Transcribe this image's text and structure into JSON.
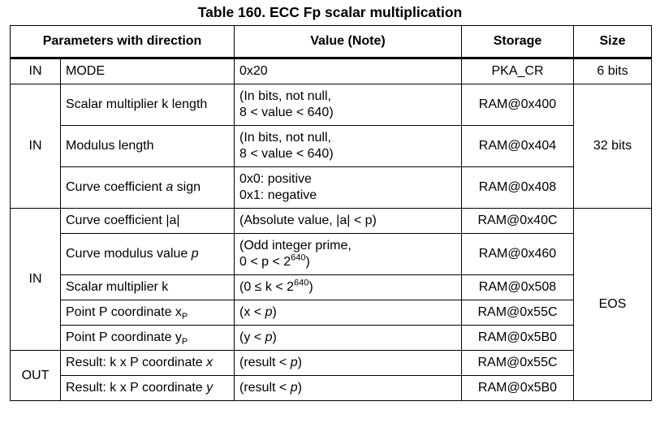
{
  "title": "Table 160. ECC Fp scalar multiplication",
  "headers": {
    "params": "Parameters with direction",
    "value": "Value (Note)",
    "storage": "Storage",
    "size": "Size"
  },
  "rows": [
    {
      "dir": "IN",
      "param": "MODE",
      "value": [
        "0x20"
      ],
      "storage": "PKA_CR",
      "size": "6 bits"
    },
    {
      "dir": "IN",
      "param": "Scalar multiplier k length",
      "value": [
        "(In bits, not null,",
        "8 < value < 640)"
      ],
      "storage": "RAM@0x400",
      "size": "32 bits"
    },
    {
      "param": "Modulus length",
      "value": [
        "(In bits, not null,",
        "8 < value < 640)"
      ],
      "storage": "RAM@0x404"
    },
    {
      "param_prefix": "Curve coefficient ",
      "param_italic": "a",
      "param_suffix": " sign",
      "value": [
        "0x0: positive",
        "0x1: negative"
      ],
      "storage": "RAM@0x408"
    },
    {
      "dir": "IN",
      "param": "Curve coefficient |a|",
      "value": [
        "(Absolute value, |a| < p)"
      ],
      "storage": "RAM@0x40C",
      "size": "EOS"
    },
    {
      "param_prefix": "Curve modulus value ",
      "param_italic": "p",
      "value_line1": "(Odd integer prime,",
      "value_line2_prefix": "0 < p < 2",
      "value_line2_sup": "640",
      "value_line2_suffix": ")",
      "storage": "RAM@0x460"
    },
    {
      "param": "Scalar multiplier k",
      "value_prefix": "(0 ≤ k < 2",
      "value_sup": "640",
      "value_suffix": ")",
      "storage": "RAM@0x508"
    },
    {
      "param_prefix": "Point P coordinate x",
      "param_sub": "P",
      "value_prefix": "(x < ",
      "value_italic": "p",
      "value_suffix": ")",
      "storage": "RAM@0x55C"
    },
    {
      "param_prefix": "Point P coordinate y",
      "param_sub": "P",
      "value_prefix": "(y < ",
      "value_italic": "p",
      "value_suffix": ")",
      "storage": "RAM@0x5B0"
    },
    {
      "dir": "OUT",
      "param_prefix": "Result: k x P coordinate ",
      "param_italic": "x",
      "value_prefix": "(result < ",
      "value_italic": "p",
      "value_suffix": ")",
      "storage": "RAM@0x55C"
    },
    {
      "param_prefix": "Result: k x P coordinate ",
      "param_italic": "y",
      "value_prefix": "(result < ",
      "value_italic": "p",
      "value_suffix": ")",
      "storage": "RAM@0x5B0"
    }
  ]
}
